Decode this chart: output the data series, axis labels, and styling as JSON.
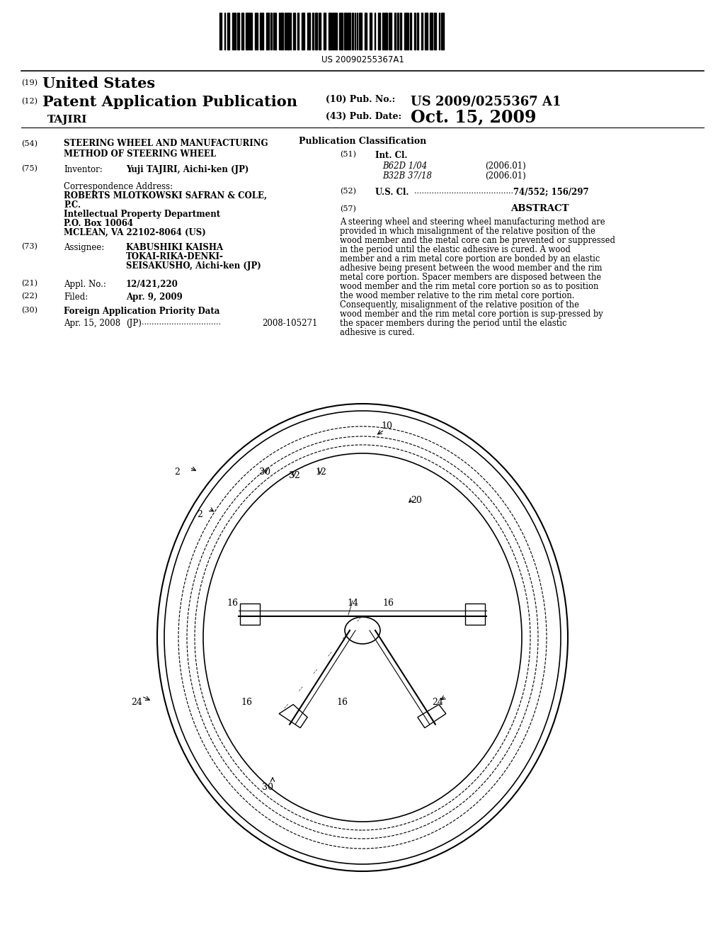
{
  "bg_color": "#ffffff",
  "barcode_text": "US 20090255367A1",
  "header_19": "(19)",
  "header_us": "United States",
  "header_12": "(12)",
  "header_pat": "Patent Application Publication",
  "header_tajiri": "TAJIRI",
  "header_10_label": "(10) Pub. No.:",
  "header_10_val": "US 2009/0255367 A1",
  "header_43_label": "(43) Pub. Date:",
  "header_43_val": "Oct. 15, 2009",
  "field54_num": "(54)",
  "field54_title1": "STEERING WHEEL AND MANUFACTURING",
  "field54_title2": "METHOD OF STEERING WHEEL",
  "field75_num": "(75)",
  "field75_label": "Inventor:",
  "field75_val": "Yuji TAJIRI, Aichi-ken (JP)",
  "corr_label": "Correspondence Address:",
  "corr_line1": "ROBERTS MLOTKOWSKI SAFRAN & COLE,",
  "corr_line2": "P.C.",
  "corr_line3": "Intellectual Property Department",
  "corr_line4": "P.O. Box 10064",
  "corr_line5": "MCLEAN, VA 22102-8064 (US)",
  "field73_num": "(73)",
  "field73_label": "Assignee:",
  "field73_val1": "KABUSHIKI KAISHA",
  "field73_val2": "TOKAI-RIKA-DENKI-",
  "field73_val3": "SEISAKUSHO, Aichi-ken (JP)",
  "field21_num": "(21)",
  "field21_label": "Appl. No.:",
  "field21_val": "12/421,220",
  "field22_num": "(22)",
  "field22_label": "Filed:",
  "field22_val": "Apr. 9, 2009",
  "field30_num": "(30)",
  "field30_label": "Foreign Application Priority Data",
  "field30_date": "Apr. 15, 2008",
  "field30_country": "(JP)",
  "field30_dots": "................................",
  "field30_appno": "2008-105271",
  "pub_class_title": "Publication Classification",
  "field51_num": "(51)",
  "field51_label": "Int. Cl.",
  "field51_b62d": "B62D 1/04",
  "field51_b62d_year": "(2006.01)",
  "field51_b32b": "B32B 37/18",
  "field51_b32b_year": "(2006.01)",
  "field52_num": "(52)",
  "field52_label": "U.S. Cl.",
  "field52_dots": "........................................",
  "field52_val": "74/552; 156/297",
  "field57_num": "(57)",
  "field57_title": "ABSTRACT",
  "abstract_text": "A steering wheel and steering wheel manufacturing method are provided in which misalignment of the relative position of the wood member and the metal core can be prevented or suppressed in the period until the elastic adhesive is cured. A wood member and a rim metal core portion are bonded by an elastic adhesive being present between the wood member and the rim metal core portion. Spacer members are disposed between the wood member and the rim metal core portion so as to position the wood member relative to the rim metal core portion. Consequently, misalignment of the relative position of the wood member and the rim metal core portion is sup-pressed by the spacer members during the period until the elastic adhesive is cured."
}
